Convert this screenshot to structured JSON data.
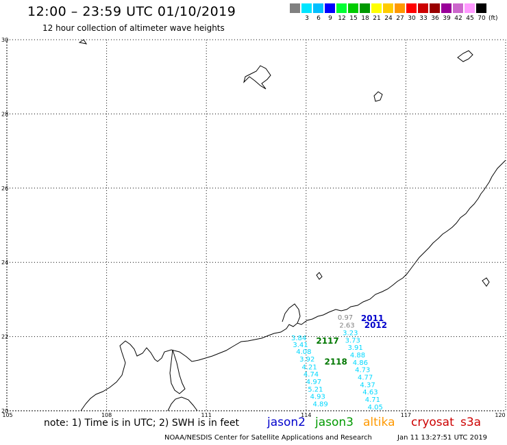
{
  "header": {
    "title": "12:00 – 23:59 UTC 01/10/2019",
    "subtitle": "12 hour collection of altimeter wave heights"
  },
  "color_scale": {
    "unit": "(ft)",
    "bins": [
      {
        "label": "",
        "color": "#808080"
      },
      {
        "label": "3",
        "color": "#00e5ff"
      },
      {
        "label": "6",
        "color": "#00bfff"
      },
      {
        "label": "9",
        "color": "#0000ff"
      },
      {
        "label": "12",
        "color": "#00ff33"
      },
      {
        "label": "15",
        "color": "#00cc00"
      },
      {
        "label": "18",
        "color": "#009900"
      },
      {
        "label": "21",
        "color": "#ffff00"
      },
      {
        "label": "24",
        "color": "#ffcc00"
      },
      {
        "label": "27",
        "color": "#ff9900"
      },
      {
        "label": "30",
        "color": "#ff0000"
      },
      {
        "label": "33",
        "color": "#cc0000"
      },
      {
        "label": "36",
        "color": "#990000"
      },
      {
        "label": "39",
        "color": "#990099"
      },
      {
        "label": "42",
        "color": "#cc66cc"
      },
      {
        "label": "45",
        "color": "#ff99ff"
      },
      {
        "label": "70",
        "color": "#000000"
      }
    ]
  },
  "map": {
    "lon_min": 105,
    "lon_max": 120,
    "lat_min": 20,
    "lat_max": 30,
    "lon_ticks": [
      "105",
      "108",
      "111",
      "114",
      "117",
      "120"
    ],
    "lat_ticks": [
      "20",
      "22",
      "24",
      "26",
      "28",
      "30"
    ],
    "grid": true
  },
  "tracks": [
    {
      "satellite": "jason3",
      "points": [
        {
          "lon": 113.55,
          "lat": 21.9,
          "value": "3.84"
        },
        {
          "lon": 113.6,
          "lat": 21.72,
          "value": "3.41"
        },
        {
          "lon": 113.7,
          "lat": 21.53,
          "value": "4.08"
        },
        {
          "lon": 113.8,
          "lat": 21.33,
          "value": "3.92"
        },
        {
          "lon": 113.87,
          "lat": 21.12,
          "value": "4.21"
        },
        {
          "lon": 113.92,
          "lat": 20.92,
          "value": "4.74"
        },
        {
          "lon": 114.0,
          "lat": 20.72,
          "value": "4.97"
        },
        {
          "lon": 114.05,
          "lat": 20.52,
          "value": "5.21"
        },
        {
          "lon": 114.12,
          "lat": 20.32,
          "value": "4.93"
        },
        {
          "lon": 114.2,
          "lat": 20.12,
          "value": "4.89"
        }
      ]
    },
    {
      "satellite": "jason2",
      "points": [
        {
          "lon": 114.95,
          "lat": 22.45,
          "value": "0.97",
          "color": "#808080"
        },
        {
          "lon": 115.0,
          "lat": 22.24,
          "value": "2.63",
          "color": "#808080"
        },
        {
          "lon": 115.1,
          "lat": 22.04,
          "value": "3.23"
        },
        {
          "lon": 115.17,
          "lat": 21.84,
          "value": "3.73"
        },
        {
          "lon": 115.25,
          "lat": 21.64,
          "value": "3.91"
        },
        {
          "lon": 115.32,
          "lat": 21.44,
          "value": "4.88"
        },
        {
          "lon": 115.4,
          "lat": 21.24,
          "value": "4.86"
        },
        {
          "lon": 115.47,
          "lat": 21.04,
          "value": "4.73"
        },
        {
          "lon": 115.55,
          "lat": 20.84,
          "value": "4.77"
        },
        {
          "lon": 115.62,
          "lat": 20.64,
          "value": "4.37"
        },
        {
          "lon": 115.7,
          "lat": 20.44,
          "value": "4.63"
        },
        {
          "lon": 115.77,
          "lat": 20.24,
          "value": "4.71"
        },
        {
          "lon": 115.85,
          "lat": 20.04,
          "value": "4.05"
        }
      ]
    }
  ],
  "track_times": [
    {
      "label": "2011",
      "lon": 115.65,
      "lat": 22.42,
      "color": "#0000cc"
    },
    {
      "label": "2012",
      "lon": 115.75,
      "lat": 22.23,
      "color": "#0000cc"
    },
    {
      "label": "2117",
      "lon": 114.3,
      "lat": 21.81,
      "color": "#007700"
    },
    {
      "label": "2118",
      "lon": 114.55,
      "lat": 21.25,
      "color": "#007700"
    }
  ],
  "footer": {
    "note": "note: 1) Time is in UTC; 2) SWH is in feet",
    "satellites": [
      {
        "label": "jason2",
        "color": "#0000cc"
      },
      {
        "label": "jason3",
        "color": "#009900"
      },
      {
        "label": "altika",
        "color": "#ff9900"
      },
      {
        "label": "cryosat",
        "color": "#cc0000"
      },
      {
        "label": "s3a",
        "color": "#cc0000"
      }
    ],
    "credit": "NOAA/NESDIS Center for Satellite Applications and Research",
    "timestamp": "Jan 11 13:27:51 UTC 2019"
  },
  "colors": {
    "value_text": "#00d8ff",
    "grid": "#000000",
    "coast": "#000000"
  }
}
